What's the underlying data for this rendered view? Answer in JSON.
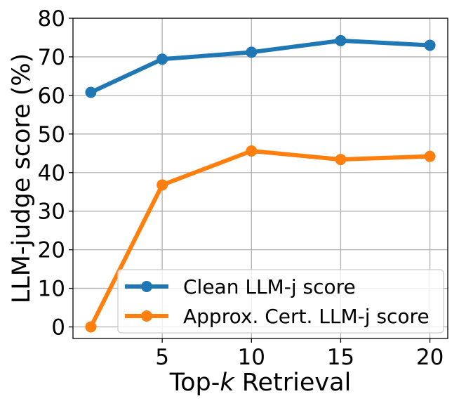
{
  "chart_data": {
    "type": "line",
    "xlabel_prefix": "Top-",
    "xlabel_italic": "k",
    "xlabel_suffix": " Retrieval",
    "ylabel": "LLM-judge score (%)",
    "xlim": [
      0,
      21
    ],
    "ylim": [
      -3,
      80
    ],
    "xticks": [
      5,
      10,
      15,
      20
    ],
    "yticks": [
      0,
      10,
      20,
      30,
      40,
      50,
      60,
      70,
      80
    ],
    "grid": true,
    "legend_position": "lower-right",
    "x": [
      1,
      5,
      10,
      15,
      20
    ],
    "series": [
      {
        "name": "Clean LLM-j score",
        "color": "#1f77b4",
        "values": [
          60.8,
          69.4,
          71.2,
          74.2,
          73.0
        ]
      },
      {
        "name": "Approx. Cert. LLM-j score",
        "color": "#ff7f0e",
        "values": [
          0.0,
          36.8,
          45.6,
          43.4,
          44.2
        ]
      }
    ]
  }
}
